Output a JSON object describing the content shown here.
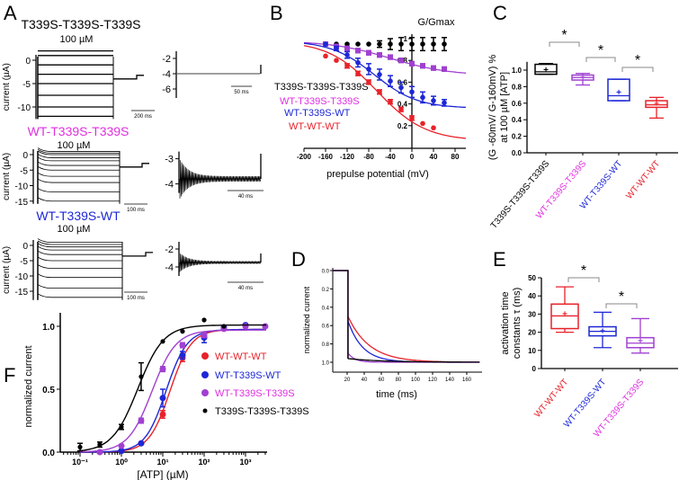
{
  "colors": {
    "black": "#000000",
    "red": "#e8222a",
    "blue": "#1d27d6",
    "magenta_label": "#e030e0",
    "purple": "#a040d0"
  },
  "chart_data": [
    {
      "panel": "A",
      "type": "line",
      "recordings": [
        {
          "title": "T339S-T339S-T339S",
          "title_color": "#000000",
          "concentration": "100 µM",
          "ylabel": "current (µA)",
          "yticks": [
            "0",
            "-5",
            "-10"
          ],
          "ytick_values": [
            0,
            -5,
            -10
          ],
          "levels": [
            2,
            1,
            -1,
            -3,
            -5,
            -7.5,
            -10,
            -12
          ],
          "tail": -4,
          "scalebar": "200 ms",
          "inset": {
            "yticks": [
              "-2",
              "-4",
              "-6"
            ],
            "ytick_values": [
              -2,
              -4,
              -6
            ],
            "baseline": -4,
            "scalebar": "50 ms",
            "noise": 0.05
          }
        },
        {
          "title": "WT-T339S-T339S",
          "title_color": "#e030e0",
          "concentration": "100 µM",
          "ylabel": "current (µA)",
          "yticks": [
            "0",
            "-5",
            "-10",
            "-15"
          ],
          "ytick_values": [
            0,
            -5,
            -10,
            -15
          ],
          "levels": [
            1,
            0.5,
            0,
            -1,
            -2,
            -3.5,
            -5,
            -7,
            -9,
            -12,
            -15
          ],
          "tail": -4,
          "scalebar": "100 ms",
          "inset": {
            "yticks": [
              "-3",
              "-4"
            ],
            "ytick_values": [
              -3,
              -4
            ],
            "baseline": -3.8,
            "scalebar": "40 ms",
            "noise": 0.3
          }
        },
        {
          "title": "WT-T339S-WT",
          "title_color": "#1d27d6",
          "concentration": "100 µM",
          "ylabel": "current (µA)",
          "yticks": [
            "0",
            "-5",
            "-10",
            "-15"
          ],
          "ytick_values": [
            0,
            -5,
            -10,
            -15
          ],
          "levels": [
            1,
            0.3,
            -0.5,
            -1.5,
            -3,
            -5,
            -7.5,
            -10.5,
            -14,
            -17
          ],
          "tail": -3.5,
          "scalebar": "100 ms",
          "inset": {
            "yticks": [
              "-2",
              "-4"
            ],
            "ytick_values": [
              -2,
              -4
            ],
            "baseline": -3.5,
            "scalebar": "40 ms",
            "noise": 0.4
          }
        }
      ]
    },
    {
      "panel": "B",
      "type": "scatter",
      "ylabel": "G/Gmax",
      "xlabel": "prepulse potential (mV)",
      "xlim": [
        -200,
        100
      ],
      "ylim": [
        0,
        1.0
      ],
      "xticks": [
        -200,
        -160,
        -120,
        -80,
        -40,
        0,
        40,
        80
      ],
      "yticks": [
        0.2,
        0.4,
        0.6,
        0.8,
        1.0
      ],
      "x": [
        -160,
        -140,
        -120,
        -100,
        -80,
        -60,
        -40,
        -20,
        0,
        20,
        40,
        60
      ],
      "series": [
        {
          "name": "T339S-T339S-T339S",
          "color": "#000000",
          "y": [
            0.95,
            0.95,
            0.95,
            0.95,
            0.95,
            0.95,
            0.95,
            0.95,
            0.95,
            0.95,
            0.95,
            0.95
          ],
          "err": [
            0.01,
            0.01,
            0.01,
            0.01,
            0.01,
            0.03,
            0.05,
            0.06,
            0.06,
            0.06,
            0.06,
            0.06
          ]
        },
        {
          "name": "WT-T339S-T339S",
          "color": "#a040d0",
          "label_color": "#e030e0",
          "y": [
            0.95,
            0.93,
            0.91,
            0.89,
            0.87,
            0.85,
            0.83,
            0.8,
            0.77,
            0.75,
            0.73,
            0.72
          ],
          "err": [
            0.01,
            0.01,
            0.02,
            0.02,
            0.02,
            0.02,
            0.02,
            0.02,
            0.02,
            0.02,
            0.02,
            0.02
          ]
        },
        {
          "name": "WT-T339S-WT",
          "color": "#1d27d6",
          "y": [
            0.95,
            0.91,
            0.85,
            0.78,
            0.72,
            0.67,
            0.61,
            0.55,
            0.51,
            0.46,
            0.43,
            0.41
          ],
          "err": [
            0.01,
            0.02,
            0.03,
            0.04,
            0.05,
            0.05,
            0.05,
            0.05,
            0.05,
            0.05,
            0.04,
            0.03
          ]
        },
        {
          "name": "WT-WT-WT",
          "color": "#e8222a",
          "y": [
            0.84,
            0.8,
            0.75,
            0.68,
            0.6,
            0.51,
            0.42,
            0.35,
            0.27,
            0.22,
            0.18,
            null
          ],
          "err": [
            0.01,
            0.01,
            0.02,
            0.02,
            0.02,
            0.02,
            0.02,
            0.02,
            0.02,
            0.01,
            0.01,
            0
          ]
        }
      ]
    },
    {
      "panel": "C",
      "type": "box",
      "ylabel": [
        "(G -60mV/ G-160mV) %",
        "at 100 µM [ATP]"
      ],
      "ylim": [
        0,
        1.1
      ],
      "yticks": [
        "0.0",
        "0.2",
        "0.4",
        "0.6",
        "0.8",
        "1.0"
      ],
      "categories": [
        "T339S-T339S-T339S",
        "WT-T339S-T339S",
        "WT-T339S-WT",
        "WT-WT-WT"
      ],
      "category_colors": [
        "#000000",
        "#e030e0",
        "#1d27d6",
        "#e8222a"
      ],
      "box_colors": [
        "#000000",
        "#a040d0",
        "#1d27d6",
        "#e8222a"
      ],
      "boxes": [
        {
          "min": 0.95,
          "q1": 0.95,
          "median": 0.98,
          "q3": 1.07,
          "max": 1.08,
          "mean": 1.0
        },
        {
          "min": 0.82,
          "q1": 0.88,
          "median": 0.91,
          "q3": 0.94,
          "max": 0.96,
          "mean": 0.91
        },
        {
          "min": 0.63,
          "q1": 0.63,
          "median": 0.69,
          "q3": 0.89,
          "max": 0.89,
          "mean": 0.73
        },
        {
          "min": 0.42,
          "q1": 0.55,
          "median": 0.58,
          "q3": 0.63,
          "max": 0.67,
          "mean": 0.59
        }
      ],
      "significance": [
        {
          "pair": [
            0,
            1
          ],
          "label": "*"
        },
        {
          "pair": [
            1,
            2
          ],
          "label": "*"
        },
        {
          "pair": [
            2,
            3
          ],
          "label": "*"
        }
      ]
    },
    {
      "panel": "D",
      "type": "line",
      "ylabel": "normalized current",
      "xlabel": "time (ms)",
      "xlim": [
        0,
        175
      ],
      "ylim": [
        0,
        1.1
      ],
      "y_inverted": true,
      "xticks": [
        "20",
        "40",
        "60",
        "80",
        "100",
        "120",
        "140",
        "160"
      ],
      "yticks": [
        "0.0",
        "0.2",
        "0.4",
        "0.6",
        "0.8",
        "1.0"
      ],
      "series": [
        {
          "color": "#e8222a",
          "onset_ms": 21,
          "start": 0.5,
          "tau_ms": 25
        },
        {
          "color": "#1d27d6",
          "onset_ms": 21,
          "start": 0.55,
          "tau_ms": 17
        },
        {
          "color": "#a040d0",
          "onset_ms": 21,
          "start": 0.9,
          "tau_ms": 8
        },
        {
          "color": "#000000",
          "onset_ms": 21,
          "start": 0.96,
          "tau_ms": 40
        }
      ]
    },
    {
      "panel": "E",
      "type": "box",
      "ylabel": [
        "activation time",
        "constants τ (ms)"
      ],
      "ylim": [
        0,
        50
      ],
      "yticks": [
        "0",
        "10",
        "20",
        "30",
        "40",
        "50"
      ],
      "categories": [
        "WT-WT-WT",
        "WT-T339S-WT",
        "WT-T339S-T339S"
      ],
      "category_colors": [
        "#e8222a",
        "#1d27d6",
        "#e030e0"
      ],
      "box_colors": [
        "#e8222a",
        "#1d27d6",
        "#a040d0"
      ],
      "boxes": [
        {
          "min": 20,
          "q1": 22,
          "median": 29,
          "q3": 35.5,
          "max": 45,
          "mean": 30
        },
        {
          "min": 11.5,
          "q1": 18,
          "median": 20.5,
          "q3": 23,
          "max": 31,
          "mean": 20.5
        },
        {
          "min": 8.5,
          "q1": 11.5,
          "median": 14,
          "q3": 17,
          "max": 27.5,
          "mean": 15
        }
      ],
      "significance": [
        {
          "pair": [
            0,
            1
          ],
          "label": "*"
        },
        {
          "pair": [
            1,
            2
          ],
          "label": "*"
        }
      ]
    },
    {
      "panel": "F",
      "type": "scatter",
      "ylabel": "normalized current",
      "xlabel": "[ATP] (µM)",
      "x_scale": "log",
      "xlim": [
        0.05,
        3500
      ],
      "ylim": [
        0,
        1.1
      ],
      "xticks": [
        "10⁻¹",
        "10⁰",
        "10¹",
        "10²",
        "10³"
      ],
      "yticks": [
        "0.0",
        "0.5",
        "1.0"
      ],
      "legend_position": "right",
      "series": [
        {
          "name": "WT-WT-WT",
          "color": "#e8222a",
          "x": [
            1,
            3,
            10,
            30,
            100,
            300
          ],
          "y": [
            0.01,
            0.07,
            0.3,
            0.75,
            0.93,
            0.98
          ],
          "err": [
            0.01,
            0.01,
            0.03,
            0.03,
            0.02,
            0.01
          ],
          "ec50": 15,
          "hill": 1.7,
          "top": 0.975
        },
        {
          "name": "WT-T339S-WT",
          "color": "#1d27d6",
          "x": [
            1,
            3,
            10,
            30,
            100,
            300,
            1000
          ],
          "y": [
            0.01,
            0.07,
            0.43,
            0.77,
            0.91,
            0.99,
            1.01
          ],
          "err": [
            0.01,
            0.01,
            0.07,
            0.03,
            0.04,
            0.01,
            0.01
          ],
          "ec50": 12,
          "hill": 1.7,
          "top": 0.975
        },
        {
          "name": "WT-T339S-T339S",
          "color": "#a040d0",
          "label_color": "#e030e0",
          "x": [
            0.3,
            1,
            3,
            10,
            30,
            100,
            300,
            1000,
            3000
          ],
          "y": [
            0.0,
            0.05,
            0.25,
            0.66,
            0.85,
            0.93,
            0.98,
            1.0,
            1.0
          ],
          "err": [
            0,
            0.01,
            0.02,
            0.02,
            0.02,
            0.02,
            0.01,
            0.01,
            0.01
          ],
          "ec50": 5.5,
          "hill": 1.5,
          "top": 0.97
        },
        {
          "name": "T339S-T339S-T339S",
          "color": "#000000",
          "x": [
            0.1,
            0.3,
            1,
            3,
            10,
            30,
            100,
            300
          ],
          "y": [
            0.04,
            0.06,
            0.2,
            0.6,
            0.88,
            0.96,
            1.05,
            1.0
          ],
          "err": [
            0.03,
            0.02,
            0.02,
            0.11,
            0.01,
            0.01,
            0.01,
            0.01
          ],
          "ec50": 2.5,
          "hill": 1.4,
          "top": 1.01
        }
      ]
    }
  ],
  "panel_labels": [
    "A",
    "B",
    "C",
    "D",
    "E",
    "F"
  ]
}
